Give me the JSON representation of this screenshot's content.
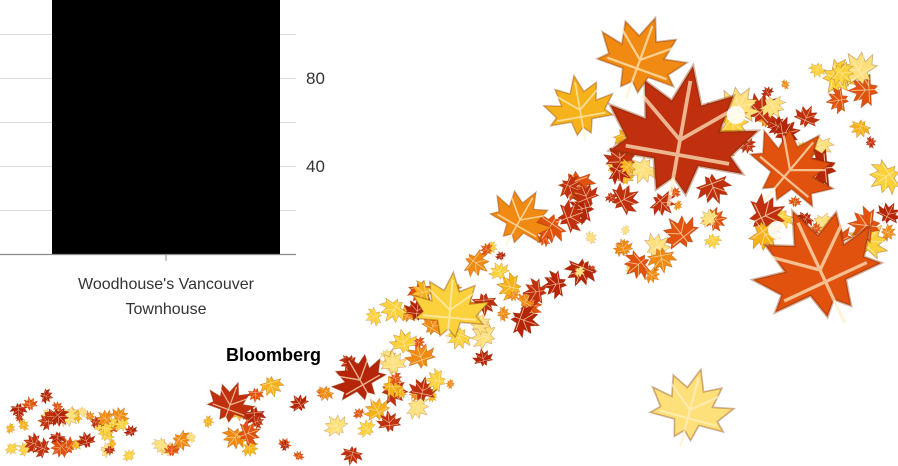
{
  "chart_data": {
    "type": "bar",
    "categories": [
      "Woodhouse's Vancouver Townhouse"
    ],
    "category_lines": [
      "Woodhouse's Vancouver",
      "Townhouse"
    ],
    "values": [
      130
    ],
    "yticks": [
      40,
      80
    ],
    "ylim": [
      0,
      140
    ],
    "y_axis_side": "right",
    "grid": true,
    "bar_color": "#000000",
    "title": "",
    "xlabel": "",
    "ylabel": ""
  },
  "branding": {
    "logo_text": "Bloomberg"
  },
  "decoration": {
    "leaf_colors": [
      "#c0300e",
      "#e2520f",
      "#f08a12",
      "#f6b21a",
      "#fbd23b",
      "#fde07a",
      "#b5250a"
    ]
  }
}
